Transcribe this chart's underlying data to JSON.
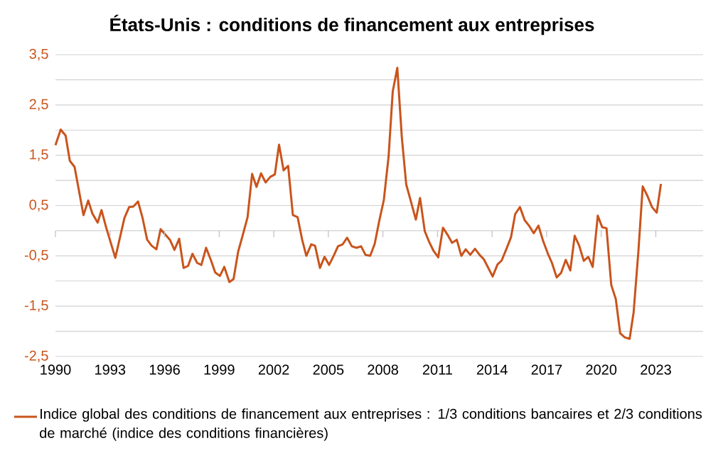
{
  "chart_data": {
    "type": "line",
    "title": "États-Unis : conditions de financement aux entreprises",
    "xlim": [
      1990,
      2025.6
    ],
    "xticks": [
      1990,
      1993,
      1996,
      1999,
      2002,
      2005,
      2008,
      2011,
      2014,
      2017,
      2020,
      2023
    ],
    "ylim": [
      -2.5,
      3.5
    ],
    "yticks": [
      {
        "value": 3.5,
        "label": "3,5"
      },
      {
        "value": 3,
        "label": null
      },
      {
        "value": 2.5,
        "label": "2,5"
      },
      {
        "value": 2,
        "label": null
      },
      {
        "value": 1.5,
        "label": "1,5"
      },
      {
        "value": 1,
        "label": null
      },
      {
        "value": 0.5,
        "label": "0,5"
      },
      {
        "value": 0,
        "label": null
      },
      {
        "value": -0.5,
        "label": "-0,5"
      },
      {
        "value": -1,
        "label": null
      },
      {
        "value": -1.5,
        "label": "-1,5"
      },
      {
        "value": -2,
        "label": null
      },
      {
        "value": -2.5,
        "label": "-2,5"
      }
    ],
    "grid": "y",
    "legend": "bottom",
    "marker": "none",
    "line_style": "solid",
    "series": [
      {
        "name": "Indice global des conditions de financement aux entreprises : 1/3 conditions bancaires et 2/3 conditions de marché (indice des conditions financières)",
        "color": "#c9541c",
        "x": [
          1990.0,
          1990.29,
          1990.56,
          1990.79,
          1991.05,
          1991.54,
          1991.8,
          1992.03,
          1992.32,
          1992.53,
          1992.79,
          1993.29,
          1993.79,
          1994.05,
          1994.28,
          1994.54,
          1994.79,
          1995.04,
          1995.29,
          1995.55,
          1995.78,
          1996.29,
          1996.54,
          1996.8,
          1997.04,
          1997.29,
          1997.53,
          1997.79,
          1998.02,
          1998.28,
          1998.54,
          1998.78,
          1999.04,
          1999.28,
          1999.56,
          1999.79,
          2000.04,
          2000.3,
          2000.56,
          2000.81,
          2001.05,
          2001.3,
          2001.55,
          2001.81,
          2002.06,
          2002.29,
          2002.54,
          2002.79,
          2003.05,
          2003.31,
          2003.56,
          2003.79,
          2004.06,
          2004.27,
          2004.54,
          2004.79,
          2005.04,
          2005.29,
          2005.53,
          2005.79,
          2006.03,
          2006.29,
          2006.55,
          2006.8,
          2007.04,
          2007.3,
          2007.55,
          2007.8,
          2008.05,
          2008.31,
          2008.54,
          2008.79,
          2009.04,
          2009.28,
          2009.54,
          2009.81,
          2010.04,
          2010.3,
          2010.55,
          2010.78,
          2011.04,
          2011.3,
          2011.55,
          2011.8,
          2012.06,
          2012.31,
          2012.55,
          2012.8,
          2013.06,
          2013.31,
          2013.55,
          2014.03,
          2014.3,
          2014.53,
          2014.78,
          2015.04,
          2015.27,
          2015.53,
          2015.79,
          2016.03,
          2016.29,
          2016.55,
          2016.8,
          2017.06,
          2017.29,
          2017.55,
          2017.79,
          2018.05,
          2018.3,
          2018.54,
          2018.79,
          2019.04,
          2019.29,
          2019.53,
          2019.81,
          2020.05,
          2020.29,
          2020.55,
          2020.8,
          2021.04,
          2021.29,
          2021.56,
          2021.78,
          2022.04,
          2022.28,
          2022.54,
          2022.79,
          2023.05,
          2023.28
        ],
        "values": [
          1.7,
          2.01,
          1.89,
          1.39,
          1.27,
          0.31,
          0.6,
          0.34,
          0.16,
          0.41,
          0.06,
          -0.54,
          0.25,
          0.47,
          0.48,
          0.58,
          0.25,
          -0.18,
          -0.3,
          -0.37,
          0.03,
          -0.18,
          -0.38,
          -0.16,
          -0.74,
          -0.7,
          -0.46,
          -0.64,
          -0.68,
          -0.34,
          -0.58,
          -0.83,
          -0.9,
          -0.72,
          -1.02,
          -0.96,
          -0.42,
          -0.08,
          0.27,
          1.13,
          0.87,
          1.14,
          0.96,
          1.07,
          1.12,
          1.71,
          1.2,
          1.29,
          0.31,
          0.27,
          -0.18,
          -0.5,
          -0.27,
          -0.3,
          -0.74,
          -0.52,
          -0.68,
          -0.5,
          -0.31,
          -0.27,
          -0.14,
          -0.31,
          -0.34,
          -0.31,
          -0.48,
          -0.5,
          -0.26,
          0.2,
          0.61,
          1.47,
          2.77,
          3.24,
          1.85,
          0.92,
          0.58,
          0.22,
          0.65,
          -0.01,
          -0.23,
          -0.4,
          -0.53,
          0.06,
          -0.08,
          -0.24,
          -0.18,
          -0.5,
          -0.37,
          -0.48,
          -0.36,
          -0.48,
          -0.57,
          -0.91,
          -0.67,
          -0.59,
          -0.37,
          -0.13,
          0.33,
          0.47,
          0.21,
          0.1,
          -0.05,
          0.1,
          -0.2,
          -0.45,
          -0.64,
          -0.93,
          -0.84,
          -0.58,
          -0.79,
          -0.1,
          -0.3,
          -0.6,
          -0.52,
          -0.72,
          0.3,
          0.07,
          0.05,
          -1.08,
          -1.36,
          -2.04,
          -2.12,
          -2.15,
          -1.62,
          -0.42,
          0.88,
          0.69,
          0.47,
          0.36,
          0.93
        ]
      }
    ]
  }
}
